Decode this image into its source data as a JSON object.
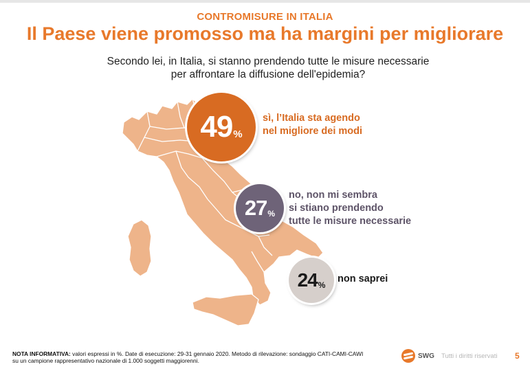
{
  "header": {
    "kicker": "CONTROMISURE IN ITALIA",
    "title": "Il Paese viene promosso ma ha margini per migliorare"
  },
  "question": {
    "line1": "Secondo lei, in Italia, si stanno prendendo tutte le misure necessarie",
    "line2": "per affrontare la diffusione dell'epidemia?"
  },
  "results": [
    {
      "value": "49",
      "unit": "%",
      "color": "#d86b22",
      "label_lines": [
        "sì, l’Italia sta agendo",
        "nel migliore dei modi"
      ]
    },
    {
      "value": "27",
      "unit": "%",
      "color": "#6e6378",
      "label_lines": [
        "no, non mi sembra",
        "si stiano prendendo",
        "tutte le misure necessarie"
      ]
    },
    {
      "value": "24",
      "unit": "%",
      "color": "#d6cfcb",
      "label_lines": [
        "non saprei"
      ]
    }
  ],
  "map": {
    "icon": "italy-map",
    "fill": "#eeb48a",
    "borders": "#ffffff"
  },
  "footer": {
    "note_label": "NOTA INFORMATIVA:",
    "note_line1": " valori espressi in %. Date di esecuzione: 29-31 gennaio 2020. Metodo di rilevazione: sondaggio CATI-CAMI-CAWI",
    "note_line2": "su un campione rappresentativo nazionale di 1.000 soggetti maggiorenni.",
    "logo_text": "SWG",
    "rights": "Tutti i diritti riservati",
    "page": "5"
  }
}
